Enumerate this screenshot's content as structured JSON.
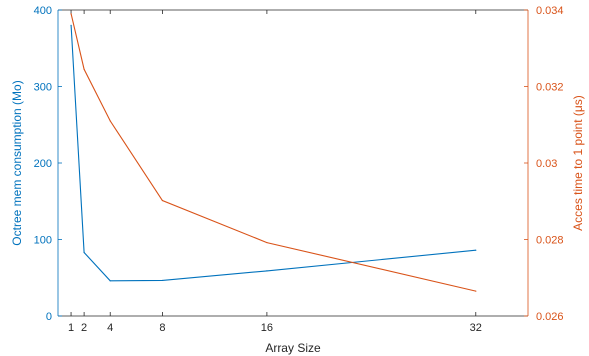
{
  "chart_data": {
    "type": "line",
    "xlabel": "Array Size",
    "x_ticks": [
      "1",
      "2",
      "4",
      "8",
      "16",
      "32"
    ],
    "xlim": [
      0,
      36
    ],
    "y_left": {
      "label": "Octree mem consumption (Mo)",
      "ticks": [
        "0",
        "100",
        "200",
        "300",
        "400"
      ],
      "ylim": [
        0,
        400
      ],
      "color": "#0072bd"
    },
    "y_right": {
      "label": "Acces time to 1 point (μs)",
      "ticks": [
        "0.026",
        "0.028",
        "0.03",
        "0.032",
        "0.034"
      ],
      "ylim": [
        0.026,
        0.034
      ],
      "color": "#d95319"
    },
    "x": [
      1,
      2,
      4,
      8,
      16,
      32
    ],
    "series": [
      {
        "axis": "left",
        "color": "#0072bd",
        "values": [
          380,
          83,
          46,
          46.5,
          59,
          86
        ]
      },
      {
        "axis": "right",
        "color": "#d95319",
        "values": [
          0.0339,
          0.03245,
          0.0311,
          0.02902,
          0.02792,
          0.02665
        ]
      }
    ],
    "grid": false,
    "legend": "none"
  }
}
